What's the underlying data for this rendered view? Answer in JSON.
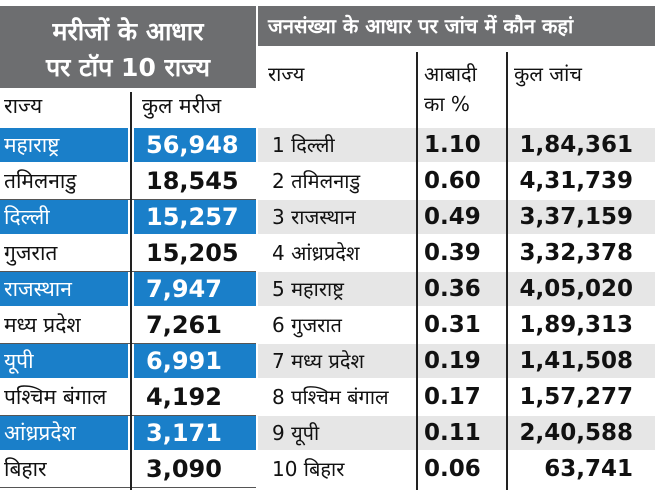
{
  "left": {
    "title_line1": "मरीजों के आधार",
    "title_line2": "पर टॉप 10 राज्य",
    "col_state": "राज्य",
    "col_patients": "कुल मरीज",
    "highlight_color": "#1a7fc9",
    "rows": [
      {
        "state": "महाराष्ट्र",
        "patients": "56,948",
        "highlight": true
      },
      {
        "state": "तमिलनाडु",
        "patients": "18,545",
        "highlight": false
      },
      {
        "state": "दिल्ली",
        "patients": "15,257",
        "highlight": true
      },
      {
        "state": "गुजरात",
        "patients": "15,205",
        "highlight": false
      },
      {
        "state": "राजस्थान",
        "patients": "7,947",
        "highlight": true
      },
      {
        "state": "मध्य प्रदेश",
        "patients": "7,261",
        "highlight": false
      },
      {
        "state": "यूपी",
        "patients": "6,991",
        "highlight": true
      },
      {
        "state": "पश्चिम बंगाल",
        "patients": "4,192",
        "highlight": false
      },
      {
        "state": "आंध्रप्रदेश",
        "patients": "3,171",
        "highlight": true
      },
      {
        "state": "बिहार",
        "patients": "3,090",
        "highlight": false
      }
    ]
  },
  "right": {
    "title": "जनसंख्या के आधार पर जांच में कौन कहां",
    "col_state": "राज्य",
    "col_pop_line1": "आबादी",
    "col_pop_line2": "का %",
    "col_tests": "कुल जांच",
    "rows": [
      {
        "state": "1 दिल्ली",
        "pct": "1.10",
        "tests": "1,84,361"
      },
      {
        "state": "2 तमिलनाडु",
        "pct": "0.60",
        "tests": "4,31,739"
      },
      {
        "state": "3 राजस्थान",
        "pct": "0.49",
        "tests": "3,37,159"
      },
      {
        "state": "4 आंध्रप्रदेश",
        "pct": "0.39",
        "tests": "3,32,378"
      },
      {
        "state": "5 महाराष्ट्र",
        "pct": "0.36",
        "tests": "4,05,020"
      },
      {
        "state": "6 गुजरात",
        "pct": "0.31",
        "tests": "1,89,313"
      },
      {
        "state": "7 मध्य प्रदेश",
        "pct": "0.19",
        "tests": "1,41,508"
      },
      {
        "state": "8 पश्चिम बंगाल",
        "pct": "0.17",
        "tests": "1,57,277"
      },
      {
        "state": "9  यूपी",
        "pct": "0.11",
        "tests": "2,40,588"
      },
      {
        "state": "10 बिहार",
        "pct": "0.06",
        "tests": "63,741"
      }
    ]
  }
}
